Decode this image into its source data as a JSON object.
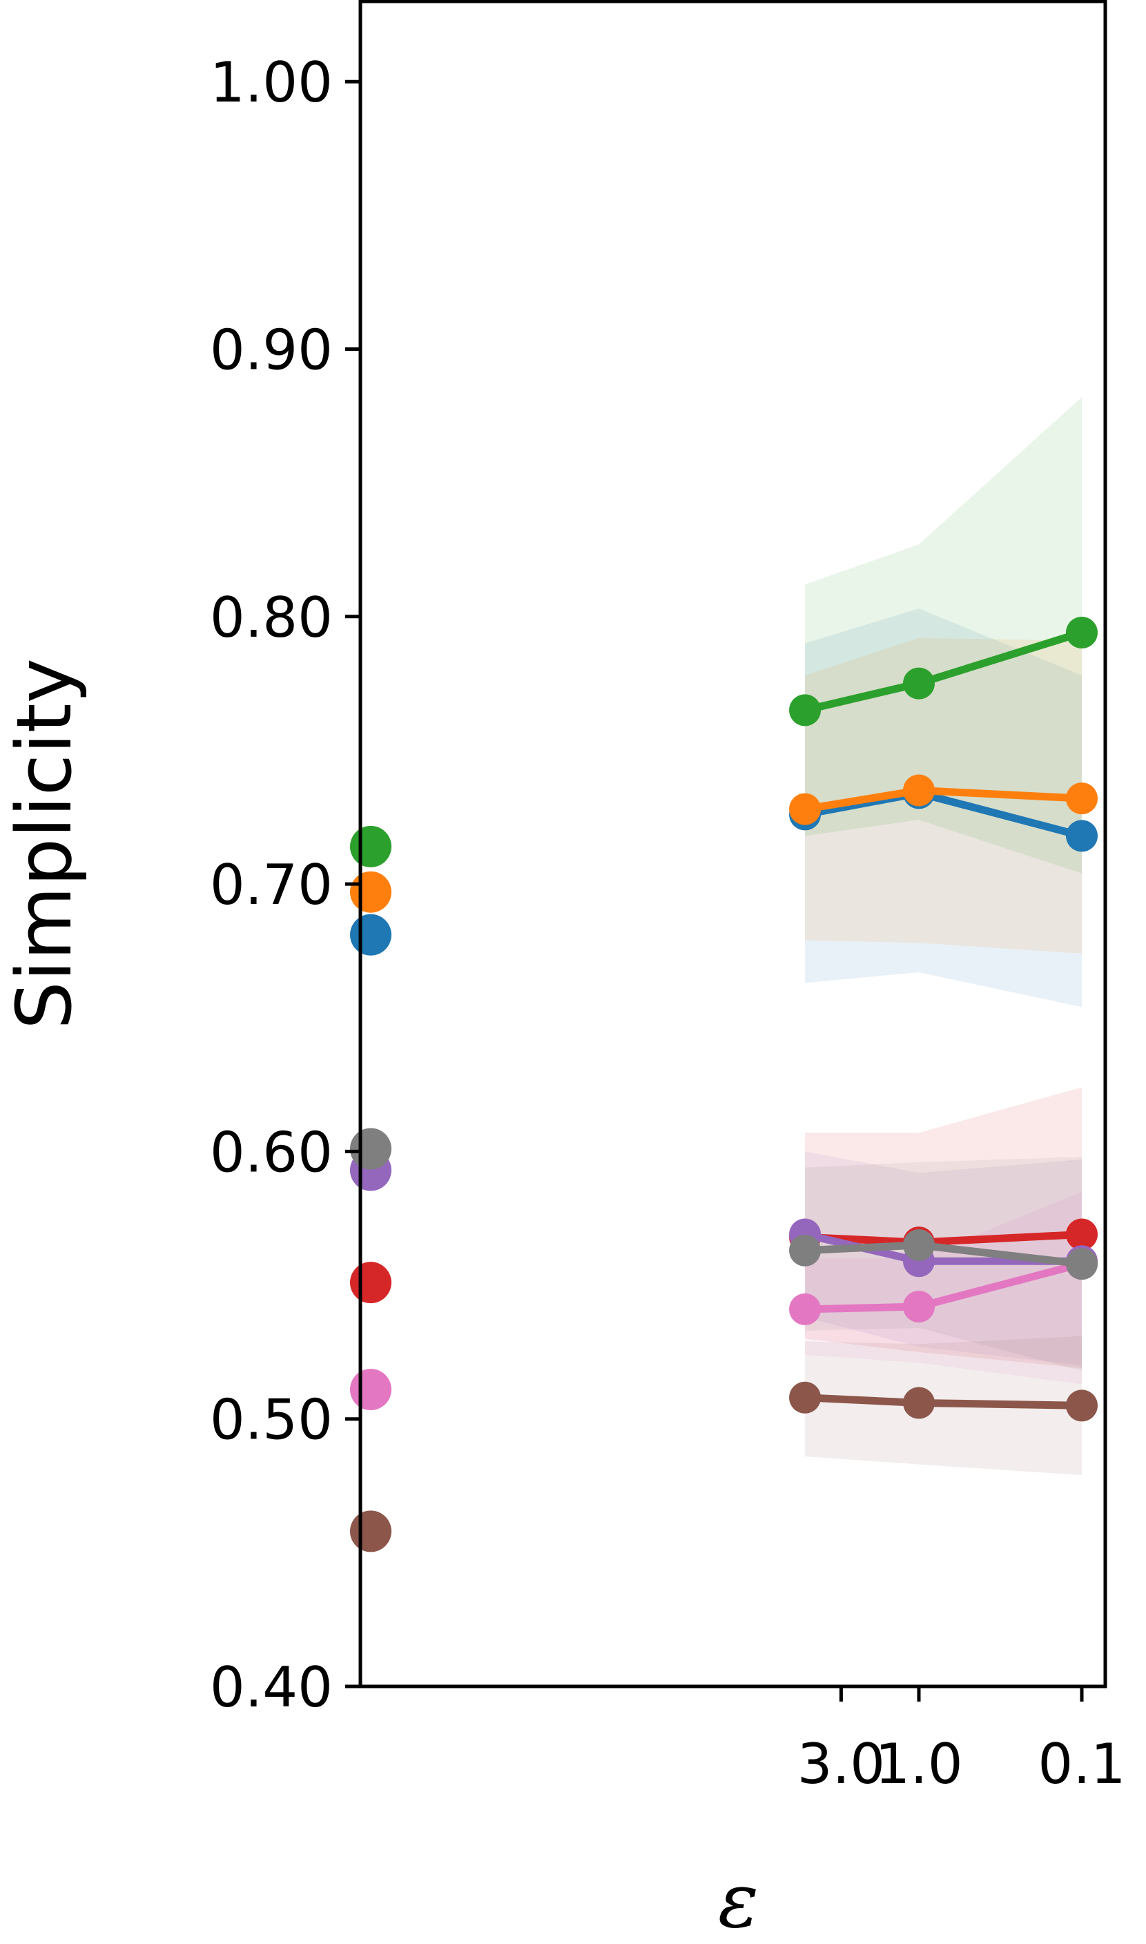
{
  "chart_data": {
    "type": "line",
    "xlabel": "ε",
    "ylabel": "Simplicity",
    "ylim": [
      0.4,
      1.03
    ],
    "x_scale": "log",
    "x_ticks": [
      "3.0",
      "1.0",
      "0.1"
    ],
    "y_ticks": [
      "1.00",
      "0.90",
      "0.80",
      "0.70",
      "0.60",
      "0.50",
      "0.40"
    ],
    "x_values": [
      5.0,
      1.0,
      0.1
    ],
    "grid": false,
    "legend": "none",
    "series": [
      {
        "color": "#1f77b4",
        "baseline": 0.681,
        "values": [
          0.726,
          0.734,
          0.718
        ],
        "band_low": [
          0.663,
          0.667,
          0.654
        ],
        "band_high": [
          0.79,
          0.803,
          0.778
        ]
      },
      {
        "color": "#ff7f0e",
        "baseline": 0.697,
        "values": [
          0.728,
          0.735,
          0.732
        ],
        "band_low": [
          0.679,
          0.678,
          0.674
        ],
        "band_high": [
          0.778,
          0.792,
          0.791
        ]
      },
      {
        "color": "#2ca02c",
        "baseline": 0.714,
        "values": [
          0.765,
          0.775,
          0.794
        ],
        "band_low": [
          0.718,
          0.724,
          0.704
        ],
        "band_high": [
          0.812,
          0.827,
          0.882
        ]
      },
      {
        "color": "#d62728",
        "baseline": 0.551,
        "values": [
          0.568,
          0.566,
          0.569
        ],
        "band_low": [
          0.53,
          0.525,
          0.519
        ],
        "band_high": [
          0.607,
          0.607,
          0.624
        ]
      },
      {
        "color": "#9467bd",
        "baseline": 0.593,
        "values": [
          0.569,
          0.559,
          0.559
        ],
        "band_low": [
          0.538,
          0.527,
          0.52
        ],
        "band_high": [
          0.6,
          0.592,
          0.597
        ]
      },
      {
        "color": "#8c564b",
        "baseline": 0.458,
        "values": [
          0.508,
          0.506,
          0.505
        ],
        "band_low": [
          0.486,
          0.483,
          0.479
        ],
        "band_high": [
          0.529,
          0.528,
          0.531
        ]
      },
      {
        "color": "#e377c2",
        "baseline": 0.511,
        "values": [
          0.541,
          0.542,
          0.558
        ],
        "band_low": [
          0.524,
          0.521,
          0.513
        ],
        "band_high": [
          0.56,
          0.56,
          0.585
        ]
      },
      {
        "color": "#7f7f7f",
        "baseline": 0.601,
        "values": [
          0.563,
          0.565,
          0.558
        ],
        "band_low": [
          0.533,
          0.534,
          0.518
        ],
        "band_high": [
          0.594,
          0.596,
          0.598
        ]
      }
    ]
  }
}
